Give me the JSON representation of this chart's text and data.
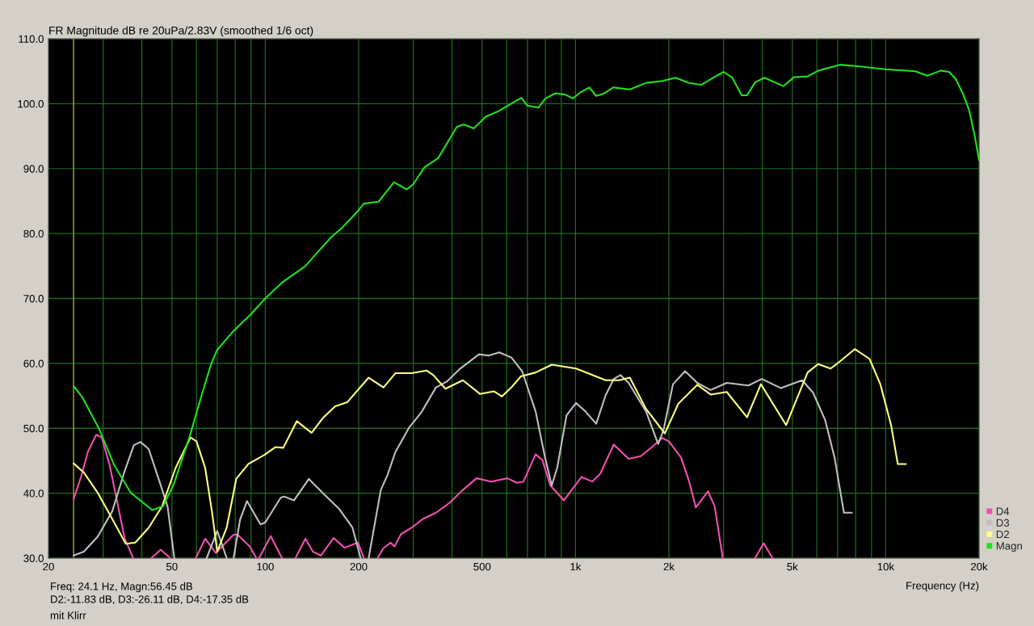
{
  "chart_data": {
    "type": "line",
    "title": "FR Magnitude dB re 20uPa/2.83V (smoothed 1/6 oct)",
    "xlabel": "Frequency (Hz)",
    "annotations": [
      "Freq: 24.1 Hz, Magn:56.45 dB",
      "D2:-11.83 dB, D3:-26.11 dB, D4:-17.35 dB",
      "mit Klirr"
    ],
    "log": "x",
    "grid": true,
    "legend": "bottom right",
    "xlim": [
      20,
      20000
    ],
    "ylim": [
      30,
      110
    ],
    "xticks": [
      20,
      {
        "value": 30,
        "label": null
      },
      {
        "value": 40,
        "label": null
      },
      50,
      {
        "value": 60,
        "label": null
      },
      {
        "value": 70,
        "label": null
      },
      {
        "value": 80,
        "label": null
      },
      {
        "value": 90,
        "label": null
      },
      100,
      200,
      {
        "value": 300,
        "label": null
      },
      {
        "value": 400,
        "label": null
      },
      500,
      {
        "value": 600,
        "label": null
      },
      {
        "value": 700,
        "label": null
      },
      {
        "value": 800,
        "label": null
      },
      {
        "value": 900,
        "label": null
      },
      {
        "value": 1000,
        "label": "1k"
      },
      {
        "value": 2000,
        "label": "2k"
      },
      {
        "value": 3000,
        "label": null
      },
      {
        "value": 4000,
        "label": null
      },
      {
        "value": 5000,
        "label": "5k"
      },
      {
        "value": 6000,
        "label": null
      },
      {
        "value": 7000,
        "label": null
      },
      {
        "value": 8000,
        "label": null
      },
      {
        "value": 9000,
        "label": null
      },
      {
        "value": 10000,
        "label": "10k"
      },
      {
        "value": 20000,
        "label": "20k"
      }
    ],
    "yticks": [
      {
        "value": 30,
        "label": "30.0"
      },
      {
        "value": 40,
        "label": "40.0"
      },
      {
        "value": 50,
        "label": "50.0"
      },
      {
        "value": 60,
        "label": "60.0"
      },
      {
        "value": 70,
        "label": "70.0"
      },
      {
        "value": 80,
        "label": "80.0"
      },
      {
        "value": 90,
        "label": "90.0"
      },
      {
        "value": 100,
        "label": "100.0"
      },
      {
        "value": 110,
        "label": "110.0"
      }
    ],
    "ref_lines": [
      {
        "axis": "x",
        "value": 24.1,
        "color": "#8f8f30"
      }
    ],
    "series": [
      {
        "name": "D4",
        "color": "#f050b0",
        "x": [
          24.1,
          25.5,
          26.8,
          28.5,
          29.7,
          31.5,
          33.1,
          35.2,
          37.5,
          40,
          42.9,
          46.0,
          49.4,
          55,
          59.7,
          64.0,
          69.3,
          79.0,
          81.4,
          89.1,
          93.6,
          94.5,
          95.5,
          104.1,
          113.2,
          119,
          125.1,
          134.7,
          142.4,
          151,
          166.1,
          179.9,
          198.9,
          208,
          212,
          230,
          240,
          253.4,
          261,
          273.8,
          296.6,
          321.2,
          355,
          392.4,
          433.6,
          479.4,
          535,
          603,
          647,
          680,
          743.9,
          782,
          830,
          917.7,
          1045,
          1132,
          1202,
          1328,
          1483,
          1622,
          1774,
          1903,
          2000,
          2189,
          2325,
          2443,
          2674,
          2809,
          2984,
          3300,
          3793,
          4044,
          4318
        ],
        "values": [
          39.1,
          42.6,
          46.4,
          49.0,
          48.6,
          44.3,
          39.3,
          33.1,
          30.0,
          null,
          30.0,
          31.3,
          30.0,
          null,
          30.0,
          33.0,
          30.8,
          33.6,
          33.6,
          31.8,
          30.0,
          null,
          30.0,
          33.4,
          30.0,
          null,
          30.0,
          33.0,
          31.0,
          30.4,
          33.1,
          31.6,
          32.4,
          30.0,
          null,
          30.0,
          31.5,
          32.4,
          31.8,
          33.7,
          34.7,
          36.0,
          37.0,
          38.5,
          40.5,
          42.3,
          41.8,
          42.3,
          41.6,
          41.8,
          46.0,
          45.1,
          41.2,
          38.9,
          42.5,
          41.8,
          43.0,
          47.5,
          45.3,
          45.7,
          47.2,
          48.5,
          48.0,
          45.5,
          41.8,
          37.8,
          40.3,
          38.0,
          30.0,
          null,
          30.0,
          32.3,
          30.0
        ]
      },
      {
        "name": "D3",
        "color": "#c0c0c0",
        "x": [
          24.1,
          26.0,
          28.8,
          32.1,
          35.2,
          37.7,
          39.6,
          42.1,
          45.6,
          48.4,
          50.9,
          55,
          64.7,
          70,
          75.1,
          77,
          79.0,
          83,
          87.3,
          96.5,
          100,
          112.1,
          115,
          123.8,
          138.2,
          154.3,
          172.9,
          191,
          203,
          209,
          215.4,
          235.7,
          247.7,
          263,
          290.7,
          318,
          355,
          384.7,
          425,
          488.8,
          524,
          567.9,
          621.5,
          673,
          743.9,
          797.8,
          838.6,
          873,
          936,
          1004,
          1077,
          1166,
          1251,
          1328,
          1396,
          1483,
          1688,
          1847,
          1922,
          2062,
          2256,
          2468,
          2728,
          3074,
          3609,
          3988,
          4585,
          5380,
          5829,
          6378,
          6842,
          7334,
          7787
        ],
        "values": [
          30.4,
          31.0,
          33.3,
          37.2,
          43.4,
          47.4,
          47.9,
          46.8,
          41.8,
          38.0,
          30.0,
          null,
          30.0,
          34.2,
          30.0,
          null,
          30.0,
          36.0,
          38.8,
          35.2,
          35.5,
          39.3,
          39.5,
          38.9,
          42.2,
          39.9,
          37.6,
          34.7,
          30.0,
          null,
          30.0,
          40.5,
          42.8,
          46.4,
          50.1,
          52.4,
          56.3,
          57.2,
          59.2,
          61.4,
          61.2,
          61.7,
          60.9,
          58.8,
          52.6,
          45.5,
          41.2,
          43.9,
          52.0,
          53.9,
          52.6,
          50.7,
          55.1,
          57.6,
          58.2,
          57.0,
          52.6,
          47.6,
          49.7,
          56.8,
          58.8,
          57.0,
          55.9,
          57.0,
          56.6,
          57.6,
          56.2,
          57.4,
          55.5,
          51.3,
          45.5,
          37.0,
          37.0
        ]
      },
      {
        "name": "D2",
        "color": "#ffff80",
        "x": [
          24.1,
          26.0,
          28.8,
          31.8,
          35.5,
          38.1,
          42.1,
          46.5,
          51.4,
          57.4,
          60,
          64.0,
          67.3,
          70,
          75.1,
          80.6,
          88.2,
          99.4,
          107.7,
          114.3,
          126.3,
          141.0,
          153.4,
          168,
          183.6,
          215.4,
          240.5,
          263,
          296,
          331,
          348,
          380.8,
          433.6,
          492,
          545.8,
          579.4,
          621.5,
          666.6,
          743.9,
          838.6,
          1004,
          1109,
          1251,
          1382,
          1497,
          1688,
          1885,
          1941,
          2146,
          2468,
          2728,
          3074,
          3573,
          3960,
          4775,
          5602,
          6060,
          6637,
          7117,
          7947,
          8870,
          9608,
          10408,
          10940,
          11620
        ],
        "values": [
          44.6,
          43.2,
          40.1,
          36.4,
          32.2,
          32.4,
          34.7,
          38.0,
          43.9,
          48.6,
          48.0,
          43.9,
          37.2,
          31.0,
          34.7,
          42.2,
          44.5,
          45.9,
          47.1,
          47.0,
          51.1,
          49.3,
          51.6,
          53.4,
          54.0,
          57.8,
          56.3,
          58.5,
          58.5,
          58.9,
          58.2,
          56.1,
          57.4,
          55.3,
          55.7,
          54.9,
          56.3,
          58.0,
          58.6,
          59.8,
          59.2,
          58.4,
          57.4,
          57.4,
          57.8,
          53.0,
          50.0,
          49.2,
          53.8,
          56.7,
          55.2,
          55.6,
          51.7,
          56.8,
          50.5,
          58.6,
          59.9,
          59.2,
          60.3,
          62.2,
          60.7,
          56.8,
          50.5,
          44.5,
          44.5
        ]
      },
      {
        "name": "Magn",
        "color": "#20e020",
        "x": [
          24.1,
          25.7,
          29.0,
          32.6,
          36.8,
          43.2,
          46.8,
          50.7,
          57.1,
          61.9,
          67.0,
          70,
          79,
          90,
          100,
          112.9,
          134.7,
          145.3,
          162.8,
          177.8,
          200,
          207.7,
          231.8,
          259.8,
          285.8,
          300,
          326,
          360.6,
          414.3,
          435.9,
          470,
          513.4,
          568,
          600,
          669.5,
          700,
          759.6,
          800,
          861.7,
          927,
          980,
          1034,
          1109,
          1166,
          1226,
          1323,
          1497,
          1688,
          1904,
          2103,
          2325,
          2543,
          2782,
          3002,
          3201,
          3433,
          3573,
          3793,
          4068,
          4679,
          5069,
          5603,
          6067,
          7120,
          8000,
          10000,
          12460,
          13630,
          15070,
          16000,
          16810,
          17680,
          18580,
          19340,
          20000
        ],
        "values": [
          56.5,
          54.8,
          50.1,
          44.3,
          40.1,
          37.4,
          38.0,
          41.4,
          48.8,
          54.6,
          60.0,
          62.1,
          65.0,
          67.6,
          70.0,
          72.4,
          75.0,
          76.8,
          79.4,
          81.0,
          83.6,
          84.6,
          84.9,
          87.9,
          86.8,
          87.6,
          90.2,
          91.6,
          96.4,
          96.8,
          96.2,
          98.0,
          98.9,
          99.6,
          100.9,
          99.7,
          99.4,
          100.8,
          101.6,
          101.4,
          100.8,
          101.7,
          102.5,
          101.2,
          101.5,
          102.5,
          102.2,
          103.2,
          103.5,
          104.0,
          103.2,
          102.9,
          104.0,
          104.9,
          104.0,
          101.3,
          101.3,
          103.3,
          104.0,
          102.7,
          104.1,
          104.2,
          105.1,
          106.0,
          105.8,
          105.3,
          105.0,
          104.3,
          105.1,
          104.9,
          103.8,
          101.7,
          99.0,
          95.2,
          91.3
        ]
      }
    ]
  }
}
